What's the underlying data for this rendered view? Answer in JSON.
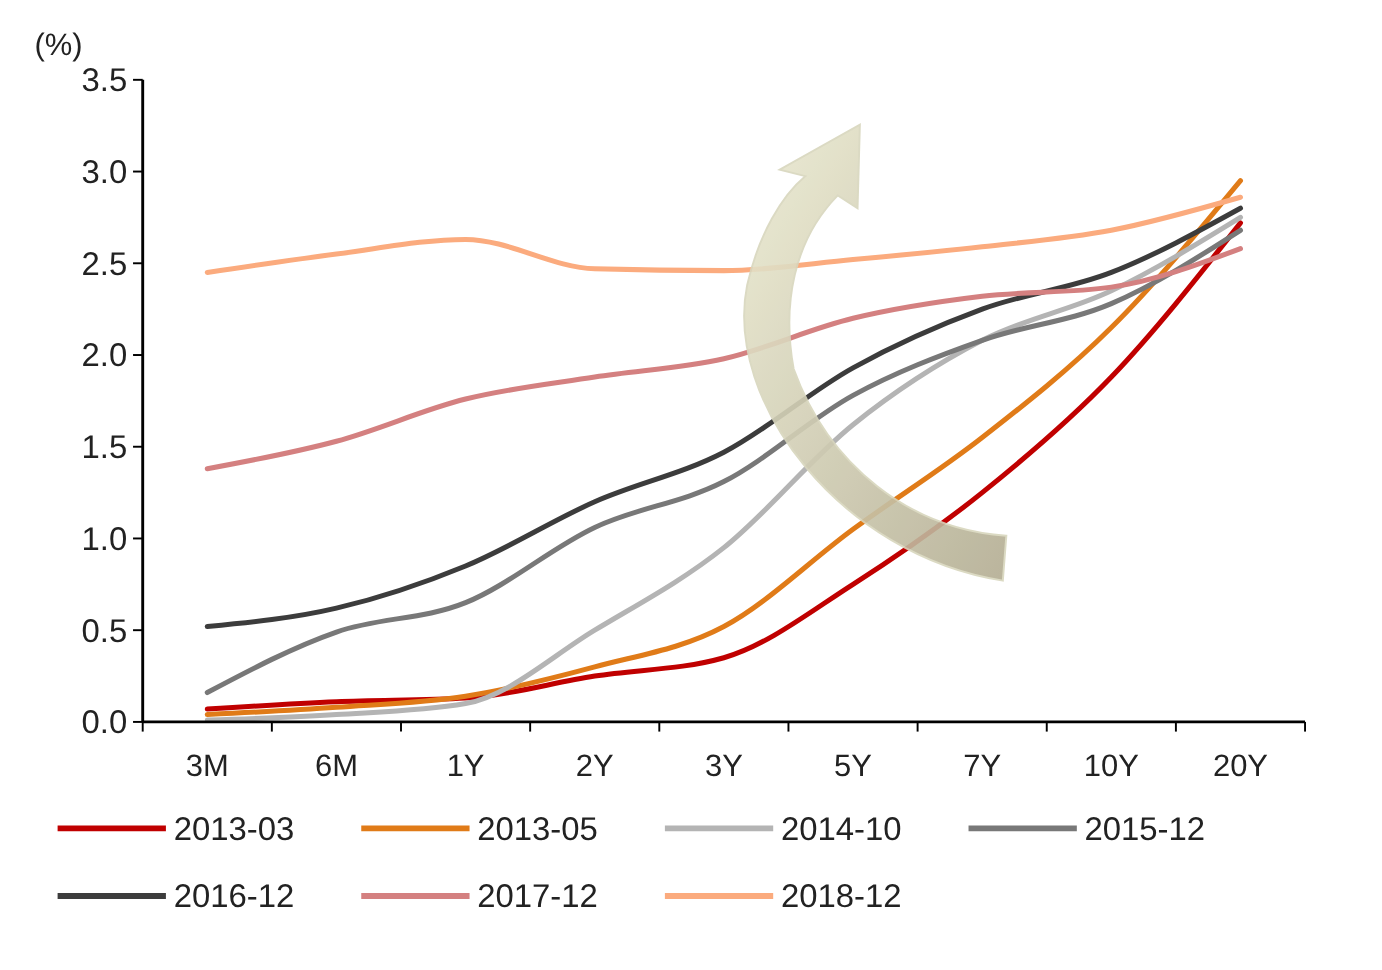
{
  "chart_data": {
    "type": "line",
    "ylabel": "(%)",
    "categories": [
      "3M",
      "6M",
      "1Y",
      "2Y",
      "3Y",
      "5Y",
      "7Y",
      "10Y",
      "20Y"
    ],
    "ylim": [
      0,
      3.5
    ],
    "yticks": [
      {
        "value": 0,
        "label": "0.0"
      },
      {
        "value": 0.5,
        "label": "0.5"
      },
      {
        "value": 1,
        "label": "1.0"
      },
      {
        "value": 1.5,
        "label": "1.5"
      },
      {
        "value": 2,
        "label": "2.0"
      },
      {
        "value": 2.5,
        "label": "2.5"
      },
      {
        "value": 3,
        "label": "3.0"
      },
      {
        "value": 3.5,
        "label": "3.5"
      }
    ],
    "grid": false,
    "legend": "bottom",
    "marker": "none",
    "line_style": "solid",
    "series": [
      {
        "name": "2013-03",
        "color": "#c00000",
        "values": [
          0.07,
          0.11,
          0.13,
          0.25,
          0.35,
          0.75,
          1.25,
          1.88,
          2.72
        ]
      },
      {
        "name": "2013-05",
        "color": "#e07b18",
        "values": [
          0.04,
          0.08,
          0.14,
          0.3,
          0.52,
          1.05,
          1.55,
          2.15,
          2.95
        ]
      },
      {
        "name": "2014-10",
        "color": "#b4b4b4",
        "values": [
          0.01,
          0.04,
          0.1,
          0.5,
          0.95,
          1.62,
          2.08,
          2.35,
          2.75
        ]
      },
      {
        "name": "2015-12",
        "color": "#787878",
        "values": [
          0.16,
          0.49,
          0.65,
          1.06,
          1.31,
          1.78,
          2.08,
          2.28,
          2.68
        ]
      },
      {
        "name": "2016-12",
        "color": "#3c3c3c",
        "values": [
          0.52,
          0.62,
          0.85,
          1.2,
          1.47,
          1.93,
          2.25,
          2.45,
          2.8
        ]
      },
      {
        "name": "2017-12",
        "color": "#d48080",
        "values": [
          1.38,
          1.53,
          1.76,
          1.88,
          1.98,
          2.2,
          2.32,
          2.37,
          2.58
        ]
      },
      {
        "name": "2018-12",
        "color": "#fbab7e",
        "values": [
          2.45,
          2.55,
          2.63,
          2.47,
          2.46,
          2.52,
          2.59,
          2.68,
          2.86
        ]
      }
    ]
  }
}
